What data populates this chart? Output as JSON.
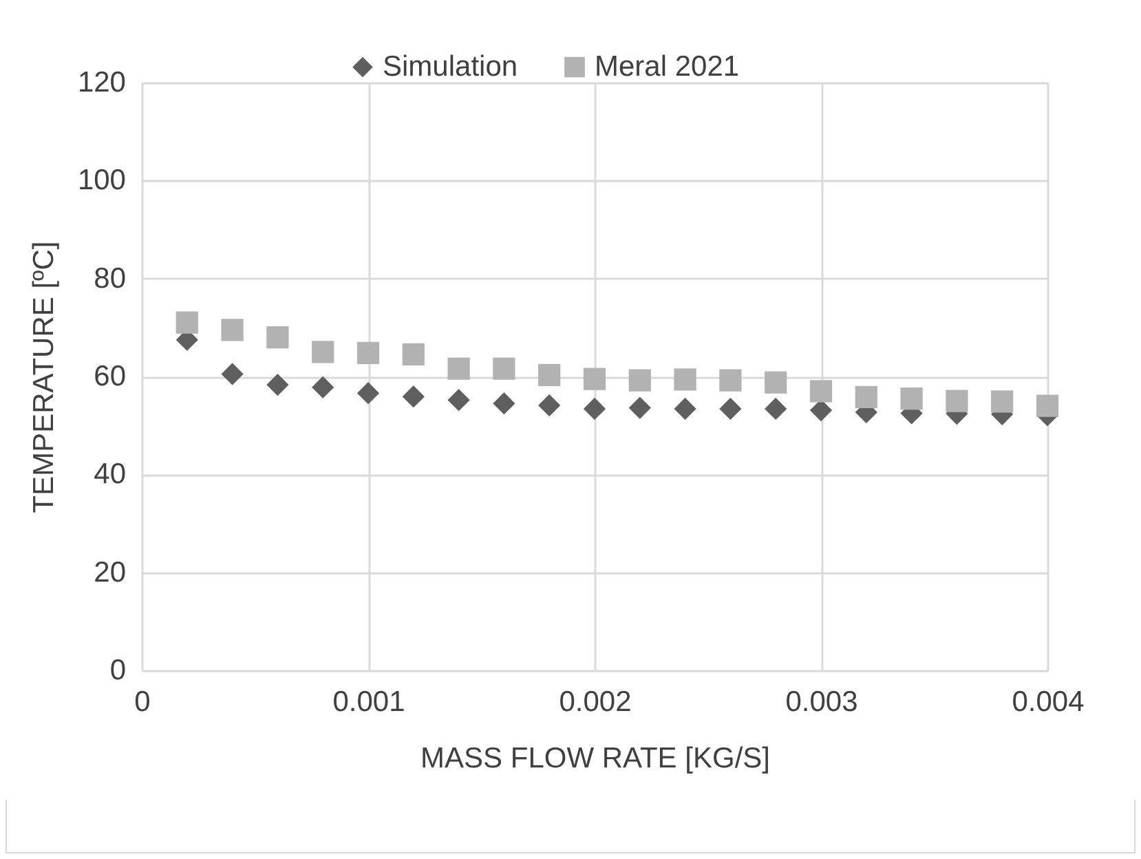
{
  "chart_data": {
    "type": "scatter",
    "xlabel": "MASS FLOW RATE [KG/S]",
    "ylabel": "TEMPERATURE [ºC]",
    "x": [
      0.0002,
      0.0004,
      0.0006,
      0.0008,
      0.001,
      0.0012,
      0.0014,
      0.0016,
      0.0018,
      0.002,
      0.0022,
      0.0024,
      0.0026,
      0.0028,
      0.003,
      0.0032,
      0.0034,
      0.0036,
      0.0038,
      0.004
    ],
    "series": [
      {
        "name": "Simulation",
        "color": "#5f5f5f",
        "marker": "diamond",
        "values": [
          67.5,
          60.5,
          58.3,
          57.8,
          56.6,
          55.9,
          55.2,
          54.5,
          54.1,
          53.4,
          53.6,
          53.4,
          53.4,
          53.4,
          53.1,
          52.7,
          52.5,
          52.4,
          52.3,
          52.1
        ]
      },
      {
        "name": "Meral 2021",
        "color": "#b2b2b2",
        "marker": "square",
        "values": [
          71,
          69.5,
          68,
          65,
          64.8,
          64.5,
          61.6,
          61.6,
          60.3,
          59.5,
          59.2,
          59.4,
          59.2,
          58.8,
          57,
          55.8,
          55.5,
          55,
          54.9,
          54
        ]
      }
    ],
    "xlim": [
      0,
      0.004
    ],
    "xticks": [
      0,
      0.001,
      0.002,
      0.003,
      0.004
    ],
    "ylim": [
      0,
      120
    ],
    "yticks": [
      0,
      20,
      40,
      60,
      80,
      100,
      120
    ],
    "grid": true,
    "legend": "top"
  }
}
